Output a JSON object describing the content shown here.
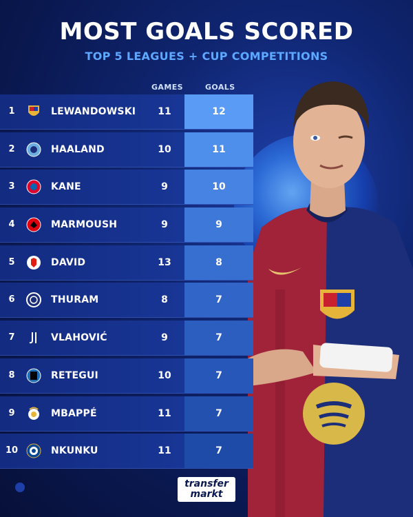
{
  "header": {
    "title": "MOST GOALS SCORED",
    "subtitle": "TOP 5 LEAGUES + CUP COMPETITIONS"
  },
  "columns": {
    "games": "GAMES",
    "goals": "GOALS"
  },
  "accent": "#5fa8ff",
  "rows": [
    {
      "rank": "1",
      "player": "LEWANDOWSKI",
      "games": "11",
      "goals": "12",
      "club_icon": "barcelona-crest-icon",
      "goals_color": "#5a9cf5"
    },
    {
      "rank": "2",
      "player": "HAALAND",
      "games": "10",
      "goals": "11",
      "club_icon": "man-city-crest-icon",
      "goals_color": "#4f8fec"
    },
    {
      "rank": "3",
      "player": "KANE",
      "games": "9",
      "goals": "10",
      "club_icon": "bayern-crest-icon",
      "goals_color": "#4683e3"
    },
    {
      "rank": "4",
      "player": "MARMOUSH",
      "games": "9",
      "goals": "9",
      "club_icon": "frankfurt-crest-icon",
      "goals_color": "#3e79da"
    },
    {
      "rank": "5",
      "player": "DAVID",
      "games": "13",
      "goals": "8",
      "club_icon": "lille-crest-icon",
      "goals_color": "#376fd1"
    },
    {
      "rank": "6",
      "player": "THURAM",
      "games": "8",
      "goals": "7",
      "club_icon": "inter-crest-icon",
      "goals_color": "#3166c8"
    },
    {
      "rank": "7",
      "player": "VLAHOVIĆ",
      "games": "9",
      "goals": "7",
      "club_icon": "juventus-crest-icon",
      "goals_color": "#2c5ec0"
    },
    {
      "rank": "8",
      "player": "RETEGUI",
      "games": "10",
      "goals": "7",
      "club_icon": "atalanta-crest-icon",
      "goals_color": "#2757b8"
    },
    {
      "rank": "9",
      "player": "MBAPPÉ",
      "games": "11",
      "goals": "7",
      "club_icon": "real-madrid-crest-icon",
      "goals_color": "#2351b0"
    },
    {
      "rank": "10",
      "player": "NKUNKU",
      "games": "11",
      "goals": "7",
      "club_icon": "chelsea-crest-icon",
      "goals_color": "#1f4ba8"
    }
  ],
  "logo": {
    "line1": "transfer",
    "line2": "markt"
  }
}
